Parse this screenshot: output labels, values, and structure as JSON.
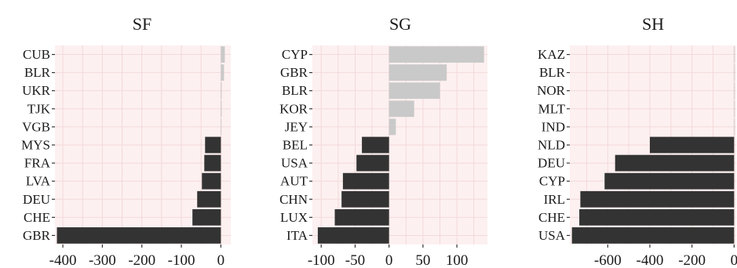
{
  "chart_data": [
    {
      "type": "bar",
      "orientation": "horizontal",
      "title": "SF",
      "categories": [
        "CUB",
        "BLR",
        "UKR",
        "TJK",
        "VGB",
        "MYS",
        "FRA",
        "LVA",
        "DEU",
        "CHE",
        "GBR"
      ],
      "values": [
        10,
        8,
        2,
        2,
        1,
        -40,
        -42,
        -48,
        -60,
        -72,
        -415
      ],
      "xlim": [
        -420,
        25
      ],
      "xticks": [
        -400,
        -300,
        -200,
        -100,
        0
      ],
      "xtick_labels": [
        "-400",
        "-300",
        "-200",
        "-100",
        "0"
      ],
      "grid": true,
      "colors": {
        "positive": "#c9c9c9",
        "negative": "#333333",
        "panel": "#fdf0f0",
        "grid": "#f3d9d9"
      }
    },
    {
      "type": "bar",
      "orientation": "horizontal",
      "title": "SG",
      "categories": [
        "CYP",
        "GBR",
        "BLR",
        "KOR",
        "JEY",
        "BEL",
        "USA",
        "AUT",
        "CHN",
        "LUX",
        "ITA"
      ],
      "values": [
        140,
        85,
        75,
        37,
        10,
        -40,
        -48,
        -68,
        -70,
        -80,
        -105
      ],
      "xlim": [
        -113,
        145
      ],
      "xticks": [
        -100,
        -50,
        0,
        50,
        100
      ],
      "xtick_labels": [
        "-100",
        "-50",
        "0",
        "50",
        "100"
      ],
      "grid": true,
      "colors": {
        "positive": "#c9c9c9",
        "negative": "#333333",
        "panel": "#fdf0f0",
        "grid": "#f3d9d9"
      }
    },
    {
      "type": "bar",
      "orientation": "horizontal",
      "title": "SH",
      "categories": [
        "KAZ",
        "BLR",
        "NOR",
        "MLT",
        "IND",
        "NLD",
        "DEU",
        "CYP",
        "IRL",
        "CHE",
        "USA"
      ],
      "values": [
        3,
        2,
        1,
        1,
        0.5,
        -400,
        -565,
        -615,
        -730,
        -735,
        -770
      ],
      "xlim": [
        -780,
        10
      ],
      "xticks": [
        -600,
        -400,
        -200,
        0
      ],
      "xtick_labels": [
        "-600",
        "-400",
        "-200",
        "0"
      ],
      "grid": true,
      "colors": {
        "positive": "#c9c9c9",
        "negative": "#333333",
        "panel": "#fdf0f0",
        "grid": "#f3d9d9"
      }
    }
  ]
}
